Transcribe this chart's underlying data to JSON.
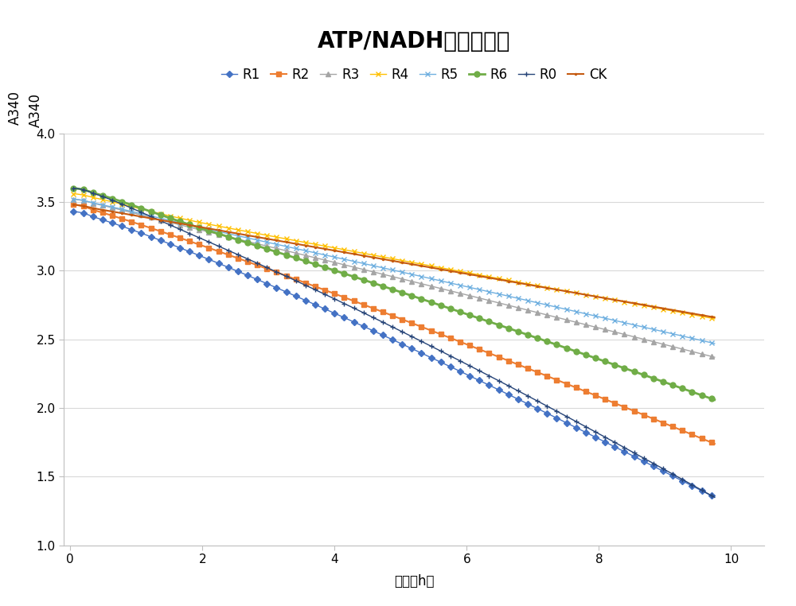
{
  "title": "ATP/NADH消耗曲线图",
  "xlabel": "时间（h）",
  "ylabel": "A340",
  "xlim": [
    -0.1,
    10.5
  ],
  "ylim": [
    1,
    4
  ],
  "yticks": [
    1,
    1.5,
    2,
    2.5,
    3,
    3.5,
    4
  ],
  "xticks": [
    0,
    2,
    4,
    6,
    8,
    10
  ],
  "series": [
    {
      "label": "R1",
      "color": "#4472C4",
      "marker": "D",
      "markersize": 4,
      "linewidth": 1.0,
      "y0": 3.43,
      "y_end": 1.35,
      "curve_power": 1.15
    },
    {
      "label": "R2",
      "color": "#ED7D31",
      "marker": "s",
      "markersize": 4,
      "linewidth": 1.5,
      "y0": 3.48,
      "y_end": 1.74,
      "curve_power": 1.1
    },
    {
      "label": "R3",
      "color": "#A5A5A5",
      "marker": "^",
      "markersize": 4,
      "linewidth": 1.0,
      "y0": 3.5,
      "y_end": 2.37,
      "curve_power": 1.05
    },
    {
      "label": "R4",
      "color": "#FFC000",
      "marker": "x",
      "markersize": 5,
      "linewidth": 1.0,
      "y0": 3.52,
      "y_end": 2.65,
      "curve_power": 1.0
    },
    {
      "label": "R5",
      "color": "#70B0E0",
      "marker": "x",
      "markersize": 5,
      "linewidth": 1.0,
      "y0": 3.5,
      "y_end": 2.47,
      "curve_power": 1.05
    },
    {
      "label": "R6",
      "color": "#70AD47",
      "marker": "o",
      "markersize": 5,
      "linewidth": 2.0,
      "y0": 3.56,
      "y_end": 2.06,
      "curve_power": 1.1
    },
    {
      "label": "R0",
      "color": "#264478",
      "marker": "+",
      "markersize": 5,
      "linewidth": 1.0,
      "y0": 3.56,
      "y_end": 1.35,
      "curve_power": 1.18
    },
    {
      "label": "CK",
      "color": "#C55A11",
      "marker": ".",
      "markersize": 3,
      "linewidth": 1.5,
      "y0": 3.48,
      "y_end": 2.66,
      "curve_power": 1.0
    }
  ],
  "background_color": "#FFFFFF",
  "grid_color": "#D9D9D9",
  "title_fontsize": 20,
  "axis_label_fontsize": 12,
  "tick_fontsize": 11,
  "legend_fontsize": 12
}
